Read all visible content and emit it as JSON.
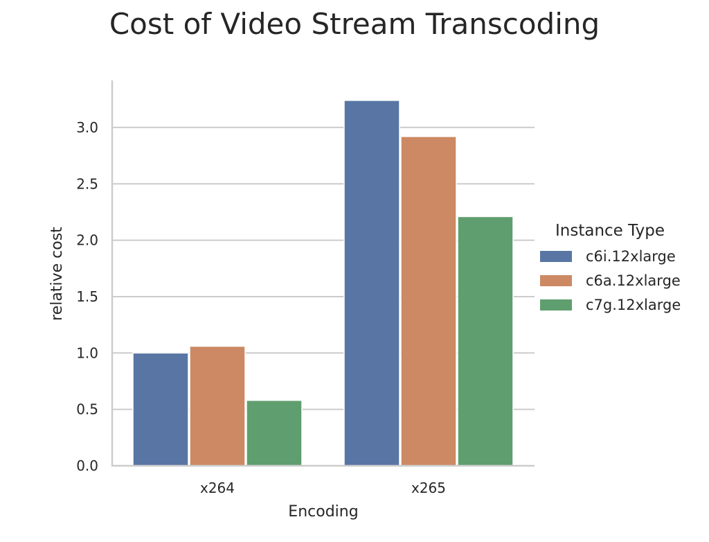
{
  "chart_data": {
    "type": "bar",
    "title": "Cost of Video Stream Transcoding",
    "xlabel": "Encoding",
    "ylabel": "relative cost",
    "categories": [
      "x264",
      "x265"
    ],
    "series": [
      {
        "name": "c6i.12xlarge",
        "color": "#5875a4",
        "values": [
          1.0,
          3.24
        ]
      },
      {
        "name": "c6a.12xlarge",
        "color": "#cc8963",
        "values": [
          1.06,
          2.92
        ]
      },
      {
        "name": "c7g.12xlarge",
        "color": "#5f9e6e",
        "values": [
          0.58,
          2.21
        ]
      }
    ],
    "yticks": [
      "0.0",
      "0.5",
      "1.0",
      "1.5",
      "2.0",
      "2.5",
      "3.0"
    ],
    "ylim": [
      0,
      3.4
    ],
    "grid": "horizontal",
    "legend": {
      "title": "Instance Type",
      "position": "right"
    }
  }
}
